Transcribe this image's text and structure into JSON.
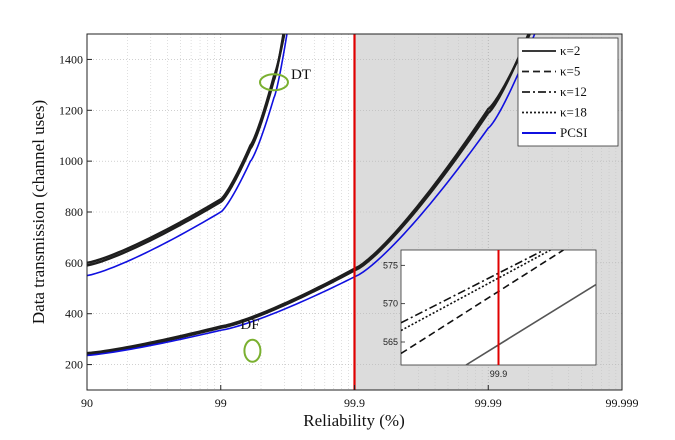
{
  "chart_data": {
    "type": "line",
    "title": "",
    "xlabel": "Reliability (%)",
    "ylabel": "Data transmission (channel uses)",
    "x_scale": "log-of-unreliability",
    "x_ticks": [
      "90",
      "99",
      "99.9",
      "99.99",
      "99.999"
    ],
    "y_ticks": [
      200,
      400,
      600,
      800,
      1000,
      1200,
      1400
    ],
    "ylim": [
      100,
      1500
    ],
    "xlim": [
      90,
      99.999
    ],
    "grid": true,
    "legend_position": "top-right",
    "shaded_region_start": 99.9,
    "vertical_line_x": 99.9,
    "colors": {
      "kappa": "#1e1e1e",
      "pcsi": "#1010e0",
      "vline": "#e00000",
      "shade": "#dcdcdc",
      "marker": "#7ab030"
    },
    "legend": [
      {
        "label": "κ=2",
        "dash": "solid"
      },
      {
        "label": "κ=5",
        "dash": "dashed"
      },
      {
        "label": "κ=12",
        "dash": "dashdot"
      },
      {
        "label": "κ=18",
        "dash": "dotted"
      },
      {
        "label": "PCSI",
        "dash": "solid-blue"
      }
    ],
    "annotations": [
      {
        "text": "DT",
        "x": 99.6,
        "y": 1330
      },
      {
        "text": "DF",
        "x": 99.4,
        "y": 270
      }
    ],
    "series": [
      {
        "name": "DT κ=2",
        "group": "DT",
        "style": "kappa",
        "x": [
          90,
          99,
          99.4,
          99.6,
          99.66
        ],
        "y": [
          590,
          840,
          1050,
          1320,
          1500
        ]
      },
      {
        "name": "DT κ=18",
        "group": "DT",
        "style": "kappa",
        "x": [
          90,
          99,
          99.4,
          99.6,
          99.665
        ],
        "y": [
          600,
          850,
          1062,
          1335,
          1500
        ]
      },
      {
        "name": "DT PCSI",
        "group": "DT",
        "style": "pcsi",
        "x": [
          90,
          99,
          99.4,
          99.6,
          99.68
        ],
        "y": [
          550,
          800,
          1000,
          1250,
          1500
        ]
      },
      {
        "name": "DF κ=2",
        "group": "DF",
        "style": "kappa",
        "x": [
          90,
          99,
          99.9,
          99.99,
          99.995
        ],
        "y": [
          240,
          345,
          570,
          1190,
          1500
        ]
      },
      {
        "name": "DF κ=18",
        "group": "DF",
        "style": "kappa",
        "x": [
          90,
          99,
          99.9,
          99.99,
          99.9951
        ],
        "y": [
          245,
          350,
          577,
          1205,
          1500
        ]
      },
      {
        "name": "DF PCSI",
        "group": "DF",
        "style": "pcsi",
        "x": [
          90,
          99,
          99.9,
          99.99,
          99.9955
        ],
        "y": [
          236,
          335,
          545,
          1130,
          1500
        ]
      }
    ],
    "inset": {
      "x_tick": "99.9",
      "y_ticks": [
        565,
        570,
        575
      ],
      "ylim": [
        562,
        577
      ],
      "xlim": [
        99.885,
        99.915
      ],
      "vertical_line_x": 99.9,
      "lines": [
        {
          "name": "κ=2",
          "dash": "solid",
          "x": [
            99.895,
            99.915
          ],
          "y": [
            562,
            572.5
          ]
        },
        {
          "name": "κ=5",
          "dash": "dashed",
          "x": [
            99.885,
            99.91
          ],
          "y": [
            563.5,
            577
          ]
        },
        {
          "name": "κ=12",
          "dash": "dashdot",
          "x": [
            99.885,
            99.907
          ],
          "y": [
            567.5,
            577
          ]
        },
        {
          "name": "κ=18",
          "dash": "dotted",
          "x": [
            99.885,
            99.908
          ],
          "y": [
            566.5,
            577
          ]
        }
      ]
    }
  }
}
